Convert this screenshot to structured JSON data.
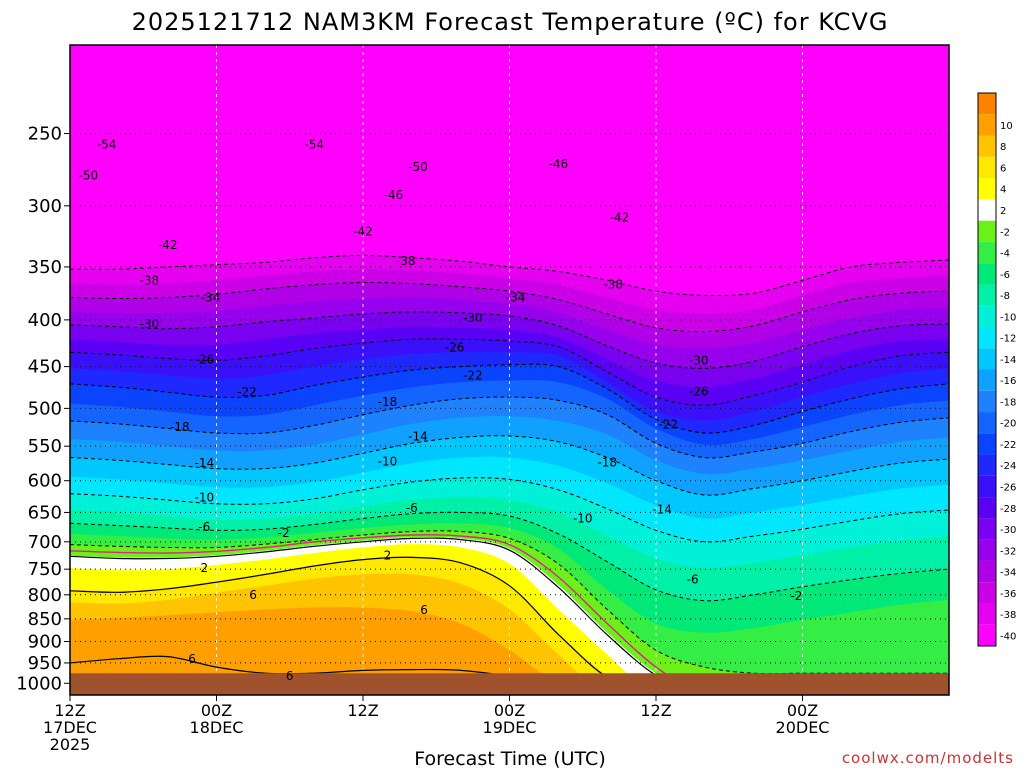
{
  "chart_data": {
    "type": "heatmap",
    "title": "2025121712 NAM3KM Forecast Temperature (ºC) for KCVG",
    "xlabel": "Forecast Time (UTC)",
    "ylabel": "",
    "x_ticks": [
      {
        "hours": 0,
        "label1": "12Z",
        "label2": "17DEC",
        "label3": "2025"
      },
      {
        "hours": 12,
        "label1": "00Z",
        "label2": "18DEC",
        "label3": ""
      },
      {
        "hours": 24,
        "label1": "12Z",
        "label2": "",
        "label3": ""
      },
      {
        "hours": 36,
        "label1": "00Z",
        "label2": "19DEC",
        "label3": ""
      },
      {
        "hours": 48,
        "label1": "12Z",
        "label2": "",
        "label3": ""
      },
      {
        "hours": 60,
        "label1": "00Z",
        "label2": "20DEC",
        "label3": ""
      }
    ],
    "y_axis": {
      "scale": "log-pressure",
      "units": "hPa",
      "inverted": true,
      "top": 200,
      "bottom": 1030
    },
    "y_ticks": [
      250,
      300,
      350,
      400,
      450,
      500,
      550,
      600,
      650,
      700,
      750,
      800,
      850,
      900,
      950,
      1000
    ],
    "colorbar": {
      "bins": [
        {
          "value": "-40",
          "color": "#ff00ff"
        },
        {
          "value": "-38",
          "color": "#e600f0"
        },
        {
          "value": "-36",
          "color": "#cc00e6"
        },
        {
          "value": "-34",
          "color": "#b000e8"
        },
        {
          "value": "-32",
          "color": "#9600ec"
        },
        {
          "value": "-30",
          "color": "#7a00f0"
        },
        {
          "value": "-28",
          "color": "#5a00f5"
        },
        {
          "value": "-26",
          "color": "#3a10fa"
        },
        {
          "value": "-24",
          "color": "#1f28ff"
        },
        {
          "value": "-22",
          "color": "#0a44ff"
        },
        {
          "value": "-20",
          "color": "#1464ff"
        },
        {
          "value": "-18",
          "color": "#1e82ff"
        },
        {
          "value": "-16",
          "color": "#10a0ff"
        },
        {
          "value": "-14",
          "color": "#00c8ff"
        },
        {
          "value": "-12",
          "color": "#00e6ff"
        },
        {
          "value": "-10",
          "color": "#00f0d8"
        },
        {
          "value": "-8",
          "color": "#00f0a8"
        },
        {
          "value": "-6",
          "color": "#00e878"
        },
        {
          "value": "-4",
          "color": "#34ee46"
        },
        {
          "value": "-2",
          "color": "#6cf01a"
        },
        {
          "value": "2",
          "color": "#ffffff"
        },
        {
          "value": "4",
          "color": "#ffff00"
        },
        {
          "value": "6",
          "color": "#ffe800"
        },
        {
          "value": "8",
          "color": "#ffc400"
        },
        {
          "value": "10",
          "color": "#ffa000"
        },
        {
          "value": "",
          "color": "#ff8200"
        }
      ],
      "ground_color": "#a0522d",
      "freezing_line_color": "#e0208c"
    },
    "contour_labels": [
      {
        "text": "-54",
        "hours": 3,
        "p": 257
      },
      {
        "text": "-54",
        "hours": 20,
        "p": 257
      },
      {
        "text": "-50",
        "hours": 1.5,
        "p": 278
      },
      {
        "text": "-50",
        "hours": 28.5,
        "p": 272
      },
      {
        "text": "-46",
        "hours": 40,
        "p": 270
      },
      {
        "text": "-46",
        "hours": 26.5,
        "p": 292
      },
      {
        "text": "-42",
        "hours": 8,
        "p": 331
      },
      {
        "text": "-42",
        "hours": 24,
        "p": 320
      },
      {
        "text": "-42",
        "hours": 45,
        "p": 309
      },
      {
        "text": "-38",
        "hours": 6.5,
        "p": 362
      },
      {
        "text": "-38",
        "hours": 27.5,
        "p": 345
      },
      {
        "text": "-38",
        "hours": 44.5,
        "p": 366
      },
      {
        "text": "-34",
        "hours": 11.5,
        "p": 378
      },
      {
        "text": "-34",
        "hours": 36.5,
        "p": 378
      },
      {
        "text": "-30",
        "hours": 6.5,
        "p": 404
      },
      {
        "text": "-30",
        "hours": 33,
        "p": 398
      },
      {
        "text": "-30",
        "hours": 51.5,
        "p": 443
      },
      {
        "text": "-26",
        "hours": 11,
        "p": 442
      },
      {
        "text": "-26",
        "hours": 31.5,
        "p": 429
      },
      {
        "text": "-26",
        "hours": 51.5,
        "p": 479
      },
      {
        "text": "-22",
        "hours": 14.5,
        "p": 480
      },
      {
        "text": "-22",
        "hours": 33,
        "p": 460
      },
      {
        "text": "-22",
        "hours": 49,
        "p": 521
      },
      {
        "text": "-18",
        "hours": 9,
        "p": 524
      },
      {
        "text": "-18",
        "hours": 26,
        "p": 492
      },
      {
        "text": "-18",
        "hours": 44,
        "p": 573
      },
      {
        "text": "-14",
        "hours": 11,
        "p": 574
      },
      {
        "text": "-14",
        "hours": 28.5,
        "p": 537
      },
      {
        "text": "-14",
        "hours": 48.5,
        "p": 645
      },
      {
        "text": "-10",
        "hours": 11,
        "p": 626
      },
      {
        "text": "-10",
        "hours": 26,
        "p": 572
      },
      {
        "text": "-10",
        "hours": 42,
        "p": 660
      },
      {
        "text": "-6",
        "hours": 11,
        "p": 674
      },
      {
        "text": "-6",
        "hours": 28,
        "p": 643
      },
      {
        "text": "-6",
        "hours": 51,
        "p": 770
      },
      {
        "text": "-2",
        "hours": 17.5,
        "p": 685
      },
      {
        "text": "-2",
        "hours": 59.5,
        "p": 802
      },
      {
        "text": "2",
        "hours": 11,
        "p": 748
      },
      {
        "text": "2",
        "hours": 26,
        "p": 725
      },
      {
        "text": "6",
        "hours": 15,
        "p": 800
      },
      {
        "text": "6",
        "hours": 29,
        "p": 831
      },
      {
        "text": "6",
        "hours": 10,
        "p": 941
      },
      {
        "text": "6",
        "hours": 18,
        "p": 982
      }
    ],
    "credit": "coolwx.com/modelts"
  }
}
